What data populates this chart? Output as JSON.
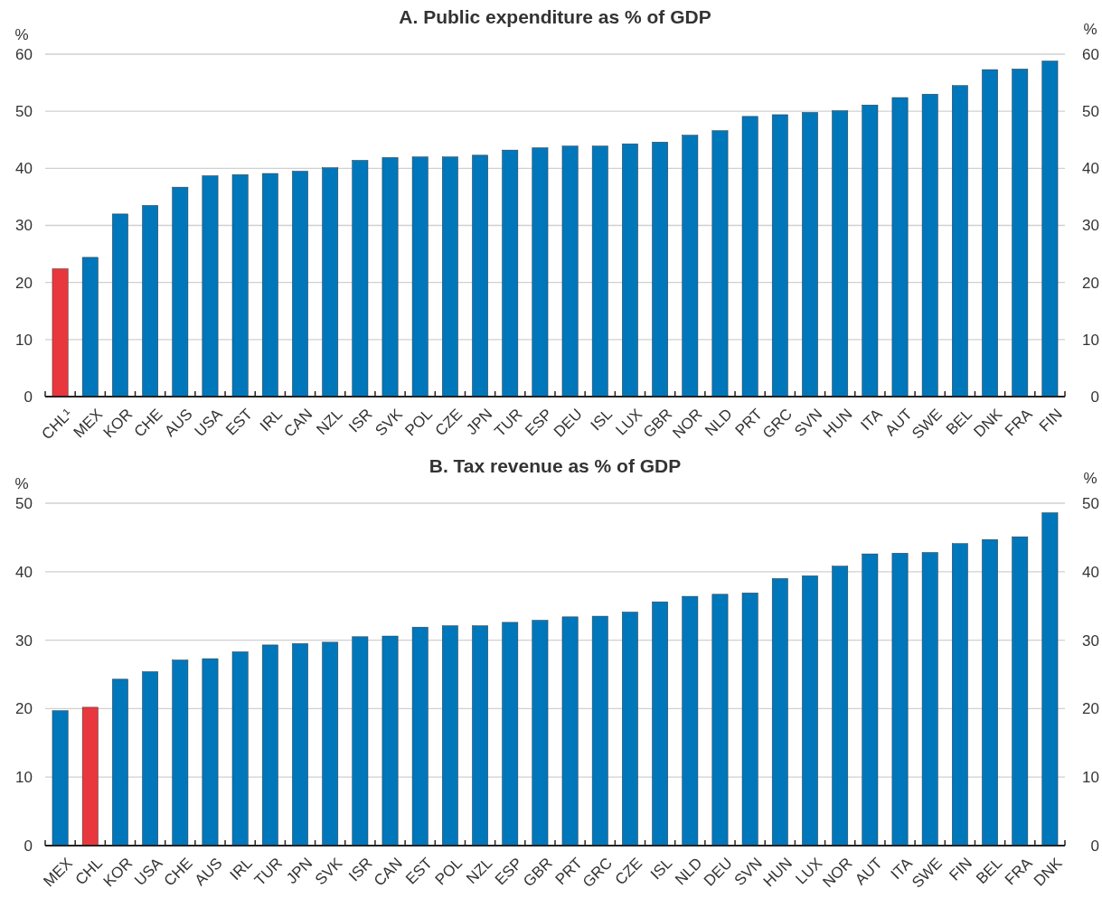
{
  "chart_data": [
    {
      "type": "bar",
      "title": "A. Public expenditure as % of GDP",
      "ylabel": "%",
      "y2label": "%",
      "categories": [
        "CHL¹",
        "MEX",
        "KOR",
        "CHE",
        "AUS",
        "USA",
        "EST",
        "IRL",
        "CAN",
        "NZL",
        "ISR",
        "SVK",
        "POL",
        "CZE",
        "JPN",
        "TUR",
        "ESP",
        "DEU",
        "ISL",
        "LUX",
        "GBR",
        "NOR",
        "NLD",
        "PRT",
        "GRC",
        "SVN",
        "HUN",
        "ITA",
        "AUT",
        "SWE",
        "BEL",
        "DNK",
        "FRA",
        "FIN"
      ],
      "values": [
        22.4,
        24.4,
        32,
        33.5,
        36.7,
        38.7,
        38.9,
        39.1,
        39.5,
        40.1,
        41.4,
        41.9,
        42.0,
        42.0,
        42.3,
        43.2,
        43.6,
        43.9,
        43.9,
        44.3,
        44.6,
        45.8,
        46.6,
        49.1,
        49.4,
        49.8,
        50.1,
        51.1,
        52.4,
        53.0,
        54.5,
        57.3,
        57.4,
        58.8
      ],
      "colors": [
        "#e8383d",
        "#0077bb",
        "#0077bb",
        "#0077bb",
        "#0077bb",
        "#0077bb",
        "#0077bb",
        "#0077bb",
        "#0077bb",
        "#0077bb",
        "#0077bb",
        "#0077bb",
        "#0077bb",
        "#0077bb",
        "#0077bb",
        "#0077bb",
        "#0077bb",
        "#0077bb",
        "#0077bb",
        "#0077bb",
        "#0077bb",
        "#0077bb",
        "#0077bb",
        "#0077bb",
        "#0077bb",
        "#0077bb",
        "#0077bb",
        "#0077bb",
        "#0077bb",
        "#0077bb",
        "#0077bb",
        "#0077bb",
        "#0077bb",
        "#0077bb"
      ],
      "ylim": [
        0,
        60
      ],
      "yticks": [
        0,
        10,
        20,
        30,
        40,
        50,
        60
      ],
      "y2lim": [
        0,
        60
      ],
      "y2ticks": [
        0,
        10,
        20,
        30,
        40,
        50,
        60
      ],
      "grid": "y"
    },
    {
      "type": "bar",
      "title": "B. Tax revenue as % of GDP",
      "ylabel": "%",
      "y2label": "%",
      "categories": [
        "MEX",
        "CHL",
        "KOR",
        "USA",
        "CHE",
        "AUS",
        "IRL",
        "TUR",
        "JPN",
        "SVK",
        "ISR",
        "CAN",
        "EST",
        "POL",
        "NZL",
        "ESP",
        "GBR",
        "PRT",
        "GRC",
        "CZE",
        "ISL",
        "NLD",
        "DEU",
        "SVN",
        "HUN",
        "LUX",
        "NOR",
        "AUT",
        "ITA",
        "SWE",
        "FIN",
        "BEL",
        "FRA",
        "DNK"
      ],
      "values": [
        19.7,
        20.2,
        24.3,
        25.4,
        27.1,
        27.3,
        28.3,
        29.3,
        29.5,
        29.7,
        30.5,
        30.6,
        31.9,
        32.1,
        32.1,
        32.6,
        32.9,
        33.4,
        33.5,
        34.1,
        35.6,
        36.4,
        36.7,
        36.9,
        39.0,
        39.4,
        40.8,
        42.6,
        42.7,
        42.8,
        44.1,
        44.7,
        45.1,
        48.6
      ],
      "colors": [
        "#0077bb",
        "#e8383d",
        "#0077bb",
        "#0077bb",
        "#0077bb",
        "#0077bb",
        "#0077bb",
        "#0077bb",
        "#0077bb",
        "#0077bb",
        "#0077bb",
        "#0077bb",
        "#0077bb",
        "#0077bb",
        "#0077bb",
        "#0077bb",
        "#0077bb",
        "#0077bb",
        "#0077bb",
        "#0077bb",
        "#0077bb",
        "#0077bb",
        "#0077bb",
        "#0077bb",
        "#0077bb",
        "#0077bb",
        "#0077bb",
        "#0077bb",
        "#0077bb",
        "#0077bb",
        "#0077bb",
        "#0077bb",
        "#0077bb",
        "#0077bb"
      ],
      "ylim": [
        0,
        50
      ],
      "yticks": [
        0,
        10,
        20,
        30,
        40,
        50
      ],
      "y2lim": [
        0,
        50
      ],
      "y2ticks": [
        0,
        10,
        20,
        30,
        40,
        50
      ],
      "grid": "y"
    }
  ]
}
